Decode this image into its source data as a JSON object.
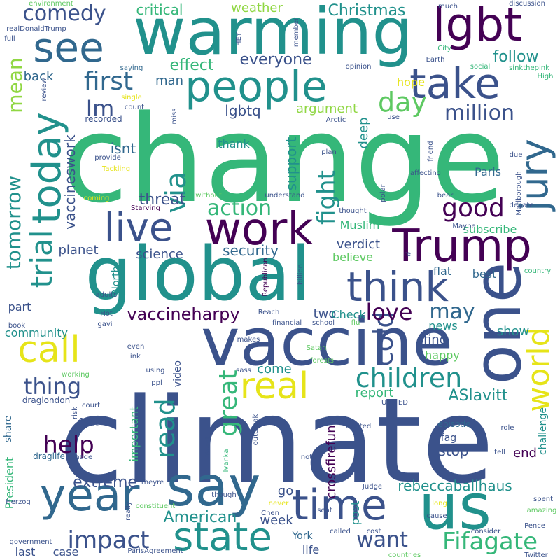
{
  "palette": {
    "dark_purple": "#440154",
    "indigo": "#3b528b",
    "blue": "#31688e",
    "teal": "#21918c",
    "green": "#35b779",
    "light_green": "#5ec962",
    "lime": "#90d743",
    "yellow": "#e6e419"
  },
  "words": {
    "change": "change",
    "climate": "climate",
    "global": "global",
    "warming": "warming",
    "vaccine": "vaccine",
    "trump": "Trump",
    "one": "one",
    "year": "year",
    "say": "say",
    "us": "us",
    "time": "time",
    "state": "state",
    "people": "people",
    "lgbt": "lgbt",
    "take": "take",
    "see": "see",
    "work": "work",
    "live": "live",
    "think": "think",
    "today": "today",
    "jury": "jury",
    "world": "world",
    "real": "real",
    "call": "call",
    "comedy": "comedy",
    "first": "first",
    "im": "Im",
    "mean": "mean",
    "day": "day",
    "million": "million",
    "trial": "trial",
    "tomorrow": "tomorrow",
    "action": "action",
    "good": "good",
    "via": "via",
    "fight": "fight",
    "children": "children",
    "thing": "thing",
    "help": "help",
    "great": "great",
    "read": "read",
    "cold": "cold",
    "love": "love",
    "may": "may",
    "want": "want",
    "fifagate": "Fifagate",
    "impact": "impact",
    "vaccineharpy": "vaccineharpy",
    "vaccineswork": "vaccineswork",
    "aslavitt": "ASlavitt",
    "rebeccaballhaus": "rebeccaballhaus",
    "american": "American",
    "extreme": "extreme",
    "crossfirefun": "crossfirefun",
    "christmas": "Christmas",
    "critical": "critical",
    "weather": "weather",
    "everyone": "everyone",
    "effect": "effect",
    "follow": "follow",
    "lgbtq": "lgbtq",
    "isnt": "isnt",
    "threat": "threat",
    "support": "support",
    "deep": "deep",
    "argument": "argument",
    "man": "man",
    "back": "back",
    "hope": "hope",
    "thank": "thank",
    "paris": "Paris",
    "security": "security",
    "science": "science",
    "planet": "planet",
    "verdict": "verdict",
    "believe": "believe",
    "muslim": "Muslim",
    "subscribe": "subscribe",
    "flat": "flat",
    "best": "best",
    "north": "North",
    "part": "part",
    "two": "two",
    "check": "Check",
    "community": "community",
    "find": "find",
    "news": "news",
    "show": "show",
    "happy": "happy",
    "come": "come",
    "report": "report",
    "fact": "fact",
    "important": "important",
    "video": "video",
    "stop": "stop",
    "end": "end",
    "challenge": "challenge",
    "president": "President",
    "week": "week",
    "go": "go",
    "post": "post",
    "life": "life",
    "york": "York",
    "case": "case",
    "last": "last",
    "share": "share",
    "draglondon": "draglondon",
    "draglife": "draglife",
    "fag": "fag",
    "episode": "episode",
    "environment": "environment",
    "realdonaldtrump": "realDonaldTrump",
    "full": "full",
    "review": "review",
    "saying": "saying",
    "single": "single",
    "count": "count",
    "recorded": "recorded",
    "provide": "provide",
    "tackling": "Tackling",
    "coming": "coming",
    "starving": "Starving",
    "without": "without",
    "understand": "understand",
    "hey": "HEY",
    "member": "member",
    "much": "much",
    "discussion": "discussion",
    "city": "City",
    "earth": "Earth",
    "opinion": "opinion",
    "social": "social",
    "sinkthepink": "sinkthepink",
    "high": "High",
    "arctic": "Arctic",
    "use": "use",
    "miss": "miss",
    "plan": "plan",
    "friend": "friend",
    "due": "due",
    "affecting": "affecting",
    "marlborough": "Marlborough",
    "polar": "polar",
    "bear": "bear",
    "debate": "debate",
    "thought": "thought",
    "maybe": "Maybe",
    "re": "re",
    "republican": "Republican",
    "billion": "billion",
    "country": "country",
    "adults": "adults",
    "hot": "Hot",
    "gavi": "gavi",
    "reach": "Reach",
    "financial": "financial",
    "school": "school",
    "flu": "flu",
    "book": "book",
    "makes": "makes",
    "satan": "Satan",
    "forests": "forests",
    "even": "even",
    "link": "link",
    "working": "working",
    "using": "using",
    "ppl": "ppl",
    "sass": "sass",
    "risk": "risk",
    "court": "court",
    "outbreak": "outbreak",
    "united": "UNITED",
    "excited": "excited",
    "tweet": "Tweet",
    "role": "role",
    "made": "made",
    "ivanka": "Ivanka",
    "note": "note",
    "tell": "tell",
    "herzog": "Herzog",
    "judge": "Judge",
    "theyre": "theyre",
    "though": "though",
    "never": "never",
    "long": "long",
    "spent": "spent",
    "amazing": "amazing",
    "cause": "cause",
    "chen": "Chen",
    "sent": "sent",
    "constituent": "constituent",
    "really": "really",
    "government": "government",
    "parisagreement": "ParisAgreement",
    "called": "called",
    "cost": "cost",
    "consider": "consider",
    "pence": "Pence",
    "countries": "countries",
    "twitter": "Twitter"
  }
}
